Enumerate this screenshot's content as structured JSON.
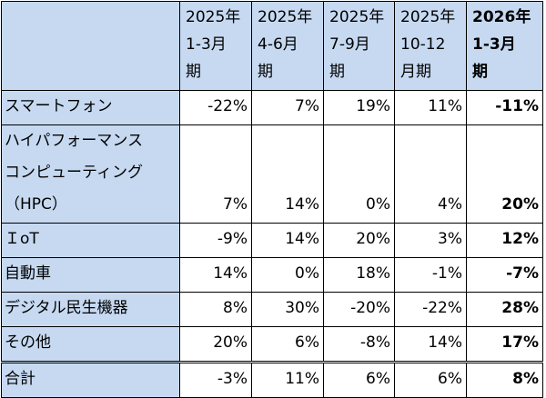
{
  "table": {
    "header": [
      [
        "2025年",
        "1-3月",
        "期"
      ],
      [
        "2025年",
        "4-6月",
        "期"
      ],
      [
        "2025年",
        "7-9月",
        "期"
      ],
      [
        "2025年",
        "10-12",
        "月期"
      ],
      [
        "2026年",
        "1-3月",
        "期"
      ]
    ],
    "rows": [
      {
        "label": [
          "スマートフォン"
        ],
        "values": [
          "-22%",
          "7%",
          "19%",
          "11%",
          "-11%"
        ]
      },
      {
        "label": [
          "ハイパフォーマンス",
          "コンピューティング",
          "（HPC）"
        ],
        "values": [
          "7%",
          "14%",
          "0%",
          "4%",
          "20%"
        ]
      },
      {
        "label": [
          "ＩoT"
        ],
        "values": [
          "-9%",
          "14%",
          "20%",
          "3%",
          "12%"
        ]
      },
      {
        "label": [
          "自動車"
        ],
        "values": [
          "14%",
          "0%",
          "18%",
          "-1%",
          "-7%"
        ]
      },
      {
        "label": [
          "デジタル民生機器"
        ],
        "values": [
          "8%",
          "30%",
          "-20%",
          "-22%",
          "28%"
        ]
      },
      {
        "label": [
          "その他"
        ],
        "values": [
          "20%",
          "6%",
          "-8%",
          "14%",
          "17%"
        ]
      },
      {
        "label": [
          "合計"
        ],
        "values": [
          "-3%",
          "11%",
          "6%",
          "6%",
          "8%"
        ]
      }
    ]
  }
}
